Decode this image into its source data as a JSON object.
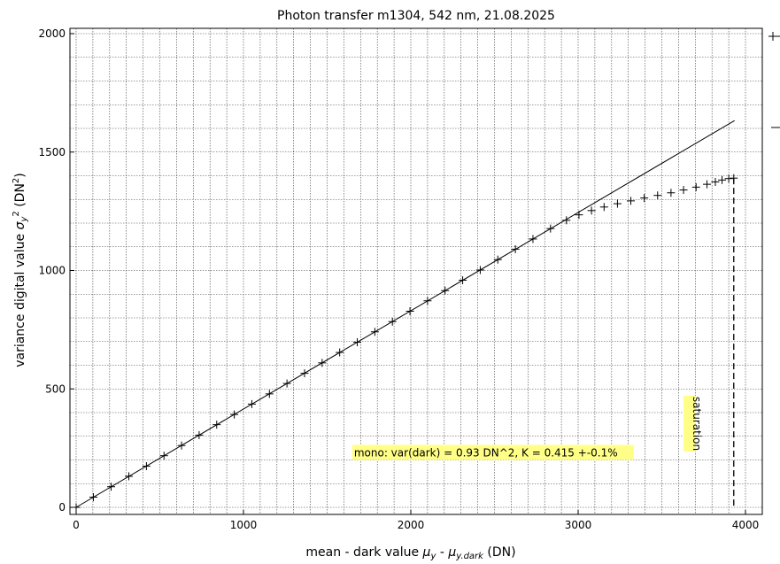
{
  "chart_data": {
    "type": "scatter",
    "title": "Photon transfer m1304,  542 nm, 21.08.2025",
    "xlabel": {
      "prefix": "mean - dark value ",
      "mu": "μ",
      "sub1": "y",
      "mid": " - ",
      "sub2": "y.dark",
      "suffix": " (DN)"
    },
    "ylabel": {
      "prefix": "variance digital value ",
      "sigma": "σ",
      "sub": "y",
      "sup": "2",
      "suffix": " (DN",
      "unit_sup": "2",
      "close": ")"
    },
    "xlim": [
      0,
      4000
    ],
    "ylim": [
      0,
      2000
    ],
    "x_ticks": [
      0,
      1000,
      2000,
      3000,
      4000
    ],
    "y_ticks": [
      0,
      500,
      1000,
      1500,
      2000
    ],
    "minor_x_step": 100,
    "minor_y_step": 100,
    "grid": true,
    "legend": "top-right",
    "series": [
      {
        "marker": "plus",
        "x": [
          0,
          103,
          209,
          315,
          420,
          525,
          630,
          735,
          840,
          945,
          1050,
          1155,
          1260,
          1365,
          1470,
          1575,
          1680,
          1785,
          1890,
          1995,
          2100,
          2205,
          2310,
          2415,
          2520,
          2625,
          2730,
          2835,
          2930,
          3005,
          3080,
          3155,
          3235,
          3315,
          3395,
          3475,
          3555,
          3630,
          3705,
          3770,
          3820,
          3860,
          3900,
          3930
        ],
        "y": [
          0,
          43,
          87,
          131,
          174,
          218,
          261,
          305,
          349,
          392,
          436,
          479,
          523,
          566,
          610,
          654,
          697,
          741,
          784,
          828,
          872,
          915,
          959,
          1002,
          1046,
          1090,
          1133,
          1177,
          1212,
          1235,
          1253,
          1268,
          1282,
          1294,
          1306,
          1317,
          1328,
          1340,
          1352,
          1364,
          1374,
          1382,
          1388,
          1390
        ]
      },
      {
        "type": "line",
        "x": [
          0,
          3935
        ],
        "y": [
          0,
          1633
        ]
      }
    ],
    "saturation": {
      "x": 3930,
      "y": 1390,
      "label": "saturation"
    },
    "annotation": {
      "text": "mono: var(dark) = 0.93 DN^2, K = 0.415 +-0.1%",
      "x": 1650,
      "y": 230,
      "bg": "#ffff88"
    },
    "colors": {
      "data": "#000000",
      "fit": "#000000",
      "grid": "#404040",
      "label_bg": "#ffff88"
    }
  }
}
